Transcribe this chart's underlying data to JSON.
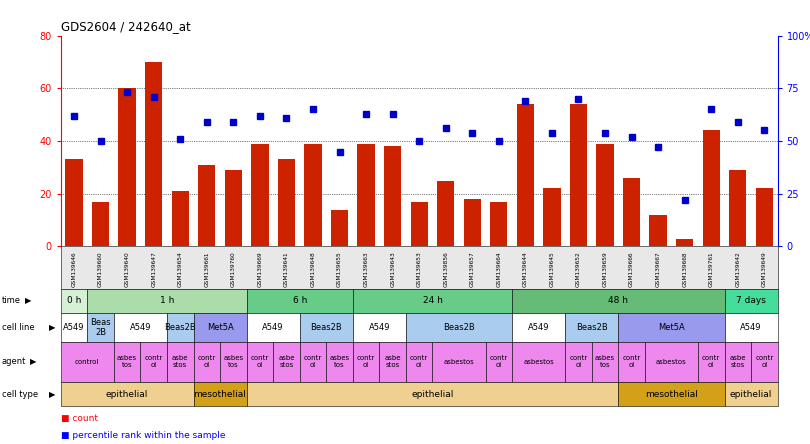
{
  "title": "GDS2604 / 242640_at",
  "samples": [
    "GSM139646",
    "GSM139660",
    "GSM139640",
    "GSM139647",
    "GSM139654",
    "GSM139661",
    "GSM139760",
    "GSM139669",
    "GSM139641",
    "GSM139648",
    "GSM139655",
    "GSM139663",
    "GSM139643",
    "GSM139653",
    "GSM139856",
    "GSM139657",
    "GSM139664",
    "GSM139644",
    "GSM139645",
    "GSM139652",
    "GSM139659",
    "GSM139666",
    "GSM139667",
    "GSM139668",
    "GSM139761",
    "GSM139642",
    "GSM139649"
  ],
  "counts": [
    33,
    17,
    60,
    70,
    21,
    31,
    29,
    39,
    33,
    39,
    14,
    39,
    38,
    17,
    25,
    18,
    17,
    54,
    22,
    54,
    39,
    26,
    12,
    3,
    44,
    29,
    22
  ],
  "percentiles": [
    62,
    50,
    73,
    71,
    51,
    59,
    59,
    62,
    61,
    65,
    45,
    63,
    63,
    50,
    56,
    54,
    50,
    69,
    54,
    70,
    54,
    52,
    47,
    22,
    65,
    59,
    55
  ],
  "time_groups": [
    {
      "label": "0 h",
      "start": 0,
      "end": 1,
      "color": "#d5f0d5"
    },
    {
      "label": "1 h",
      "start": 1,
      "end": 7,
      "color": "#aaddaa"
    },
    {
      "label": "6 h",
      "start": 7,
      "end": 11,
      "color": "#66cc88"
    },
    {
      "label": "24 h",
      "start": 11,
      "end": 17,
      "color": "#66cc88"
    },
    {
      "label": "48 h",
      "start": 17,
      "end": 25,
      "color": "#66bb77"
    },
    {
      "label": "7 days",
      "start": 25,
      "end": 27,
      "color": "#44dd99"
    }
  ],
  "cell_line_groups": [
    {
      "label": "A549",
      "start": 0,
      "end": 1,
      "color": "#ffffff"
    },
    {
      "label": "Beas\n2B",
      "start": 1,
      "end": 2,
      "color": "#aaccee"
    },
    {
      "label": "A549",
      "start": 2,
      "end": 4,
      "color": "#ffffff"
    },
    {
      "label": "Beas2B",
      "start": 4,
      "end": 5,
      "color": "#aaccee"
    },
    {
      "label": "Met5A",
      "start": 5,
      "end": 7,
      "color": "#9999ee"
    },
    {
      "label": "A549",
      "start": 7,
      "end": 9,
      "color": "#ffffff"
    },
    {
      "label": "Beas2B",
      "start": 9,
      "end": 11,
      "color": "#aaccee"
    },
    {
      "label": "A549",
      "start": 11,
      "end": 13,
      "color": "#ffffff"
    },
    {
      "label": "Beas2B",
      "start": 13,
      "end": 17,
      "color": "#aaccee"
    },
    {
      "label": "A549",
      "start": 17,
      "end": 19,
      "color": "#ffffff"
    },
    {
      "label": "Beas2B",
      "start": 19,
      "end": 21,
      "color": "#aaccee"
    },
    {
      "label": "Met5A",
      "start": 21,
      "end": 25,
      "color": "#9999ee"
    },
    {
      "label": "A549",
      "start": 25,
      "end": 27,
      "color": "#ffffff"
    }
  ],
  "agent_groups": [
    {
      "label": "control",
      "start": 0,
      "end": 2,
      "color": "#ee88ee"
    },
    {
      "label": "asbes\ntos",
      "start": 2,
      "end": 3,
      "color": "#ee88ee"
    },
    {
      "label": "contr\nol",
      "start": 3,
      "end": 4,
      "color": "#ee88ee"
    },
    {
      "label": "asbe\nstos",
      "start": 4,
      "end": 5,
      "color": "#ee88ee"
    },
    {
      "label": "contr\nol",
      "start": 5,
      "end": 6,
      "color": "#ee88ee"
    },
    {
      "label": "asbes\ntos",
      "start": 6,
      "end": 7,
      "color": "#ee88ee"
    },
    {
      "label": "contr\nol",
      "start": 7,
      "end": 8,
      "color": "#ee88ee"
    },
    {
      "label": "asbe\nstos",
      "start": 8,
      "end": 9,
      "color": "#ee88ee"
    },
    {
      "label": "contr\nol",
      "start": 9,
      "end": 10,
      "color": "#ee88ee"
    },
    {
      "label": "asbes\ntos",
      "start": 10,
      "end": 11,
      "color": "#ee88ee"
    },
    {
      "label": "contr\nol",
      "start": 11,
      "end": 12,
      "color": "#ee88ee"
    },
    {
      "label": "asbe\nstos",
      "start": 12,
      "end": 13,
      "color": "#ee88ee"
    },
    {
      "label": "contr\nol",
      "start": 13,
      "end": 14,
      "color": "#ee88ee"
    },
    {
      "label": "asbestos",
      "start": 14,
      "end": 16,
      "color": "#ee88ee"
    },
    {
      "label": "contr\nol",
      "start": 16,
      "end": 17,
      "color": "#ee88ee"
    },
    {
      "label": "asbestos",
      "start": 17,
      "end": 19,
      "color": "#ee88ee"
    },
    {
      "label": "contr\nol",
      "start": 19,
      "end": 20,
      "color": "#ee88ee"
    },
    {
      "label": "asbes\ntos",
      "start": 20,
      "end": 21,
      "color": "#ee88ee"
    },
    {
      "label": "contr\nol",
      "start": 21,
      "end": 22,
      "color": "#ee88ee"
    },
    {
      "label": "asbestos",
      "start": 22,
      "end": 24,
      "color": "#ee88ee"
    },
    {
      "label": "contr\nol",
      "start": 24,
      "end": 25,
      "color": "#ee88ee"
    },
    {
      "label": "asbe\nstos",
      "start": 25,
      "end": 26,
      "color": "#ee88ee"
    },
    {
      "label": "contr\nol",
      "start": 26,
      "end": 27,
      "color": "#ee88ee"
    }
  ],
  "cell_type_groups": [
    {
      "label": "epithelial",
      "start": 0,
      "end": 5,
      "color": "#f0d090"
    },
    {
      "label": "mesothelial",
      "start": 5,
      "end": 7,
      "color": "#d4a017"
    },
    {
      "label": "epithelial",
      "start": 7,
      "end": 21,
      "color": "#f0d090"
    },
    {
      "label": "mesothelial",
      "start": 21,
      "end": 25,
      "color": "#d4a017"
    },
    {
      "label": "epithelial",
      "start": 25,
      "end": 27,
      "color": "#f0d090"
    }
  ],
  "bar_color": "#cc2200",
  "dot_color": "#0000cc",
  "ylim_left": [
    0,
    80
  ],
  "ylim_right": [
    0,
    100
  ],
  "yticks_left": [
    0,
    20,
    40,
    60,
    80
  ],
  "ytick_labels_right": [
    "0",
    "25",
    "50",
    "75",
    "100%"
  ],
  "grid_lines": [
    20,
    40,
    60
  ]
}
